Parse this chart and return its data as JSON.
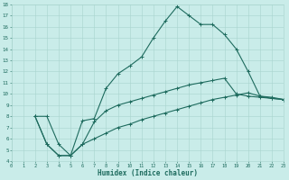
{
  "xlabel": "Humidex (Indice chaleur)",
  "xlim": [
    0,
    23
  ],
  "ylim": [
    4,
    18
  ],
  "xticks": [
    0,
    1,
    2,
    3,
    4,
    5,
    6,
    7,
    8,
    9,
    10,
    11,
    12,
    13,
    14,
    15,
    16,
    17,
    18,
    19,
    20,
    21,
    22,
    23
  ],
  "yticks": [
    4,
    5,
    6,
    7,
    8,
    9,
    10,
    11,
    12,
    13,
    14,
    15,
    16,
    17,
    18
  ],
  "bg_color": "#c9ece9",
  "grid_color": "#a8d4ce",
  "line_color": "#1e6b5e",
  "line1_x": [
    2,
    3,
    4,
    5,
    6,
    7,
    8,
    9,
    10,
    11,
    12,
    13,
    14,
    15,
    16,
    17,
    18,
    19,
    20,
    21,
    22,
    23
  ],
  "line1_y": [
    8,
    8,
    5.5,
    4.5,
    7.6,
    7.8,
    10.5,
    11.8,
    12.5,
    13.3,
    15.0,
    16.5,
    17.8,
    17.0,
    16.2,
    16.2,
    15.3,
    14.0,
    12.0,
    9.8,
    9.7,
    9.5
  ],
  "line2_x": [
    2,
    3,
    4,
    5,
    6,
    7,
    8,
    9,
    10,
    11,
    12,
    13,
    14,
    15,
    16,
    17,
    18,
    19,
    20,
    21,
    22,
    23
  ],
  "line2_y": [
    8,
    5.5,
    4.5,
    4.5,
    5.5,
    7.5,
    8.5,
    9.0,
    9.3,
    9.6,
    9.9,
    10.2,
    10.5,
    10.8,
    11.0,
    11.2,
    11.4,
    10.0,
    9.8,
    9.7,
    9.6,
    9.5
  ],
  "line3_x": [
    2,
    3,
    4,
    5,
    6,
    7,
    8,
    9,
    10,
    11,
    12,
    13,
    14,
    15,
    16,
    17,
    18,
    19,
    20,
    21,
    22,
    23
  ],
  "line3_y": [
    8,
    5.5,
    4.5,
    4.5,
    5.5,
    6.0,
    6.5,
    7.0,
    7.3,
    7.7,
    8.0,
    8.3,
    8.6,
    8.9,
    9.2,
    9.5,
    9.7,
    9.9,
    10.1,
    9.8,
    9.6,
    9.5
  ]
}
